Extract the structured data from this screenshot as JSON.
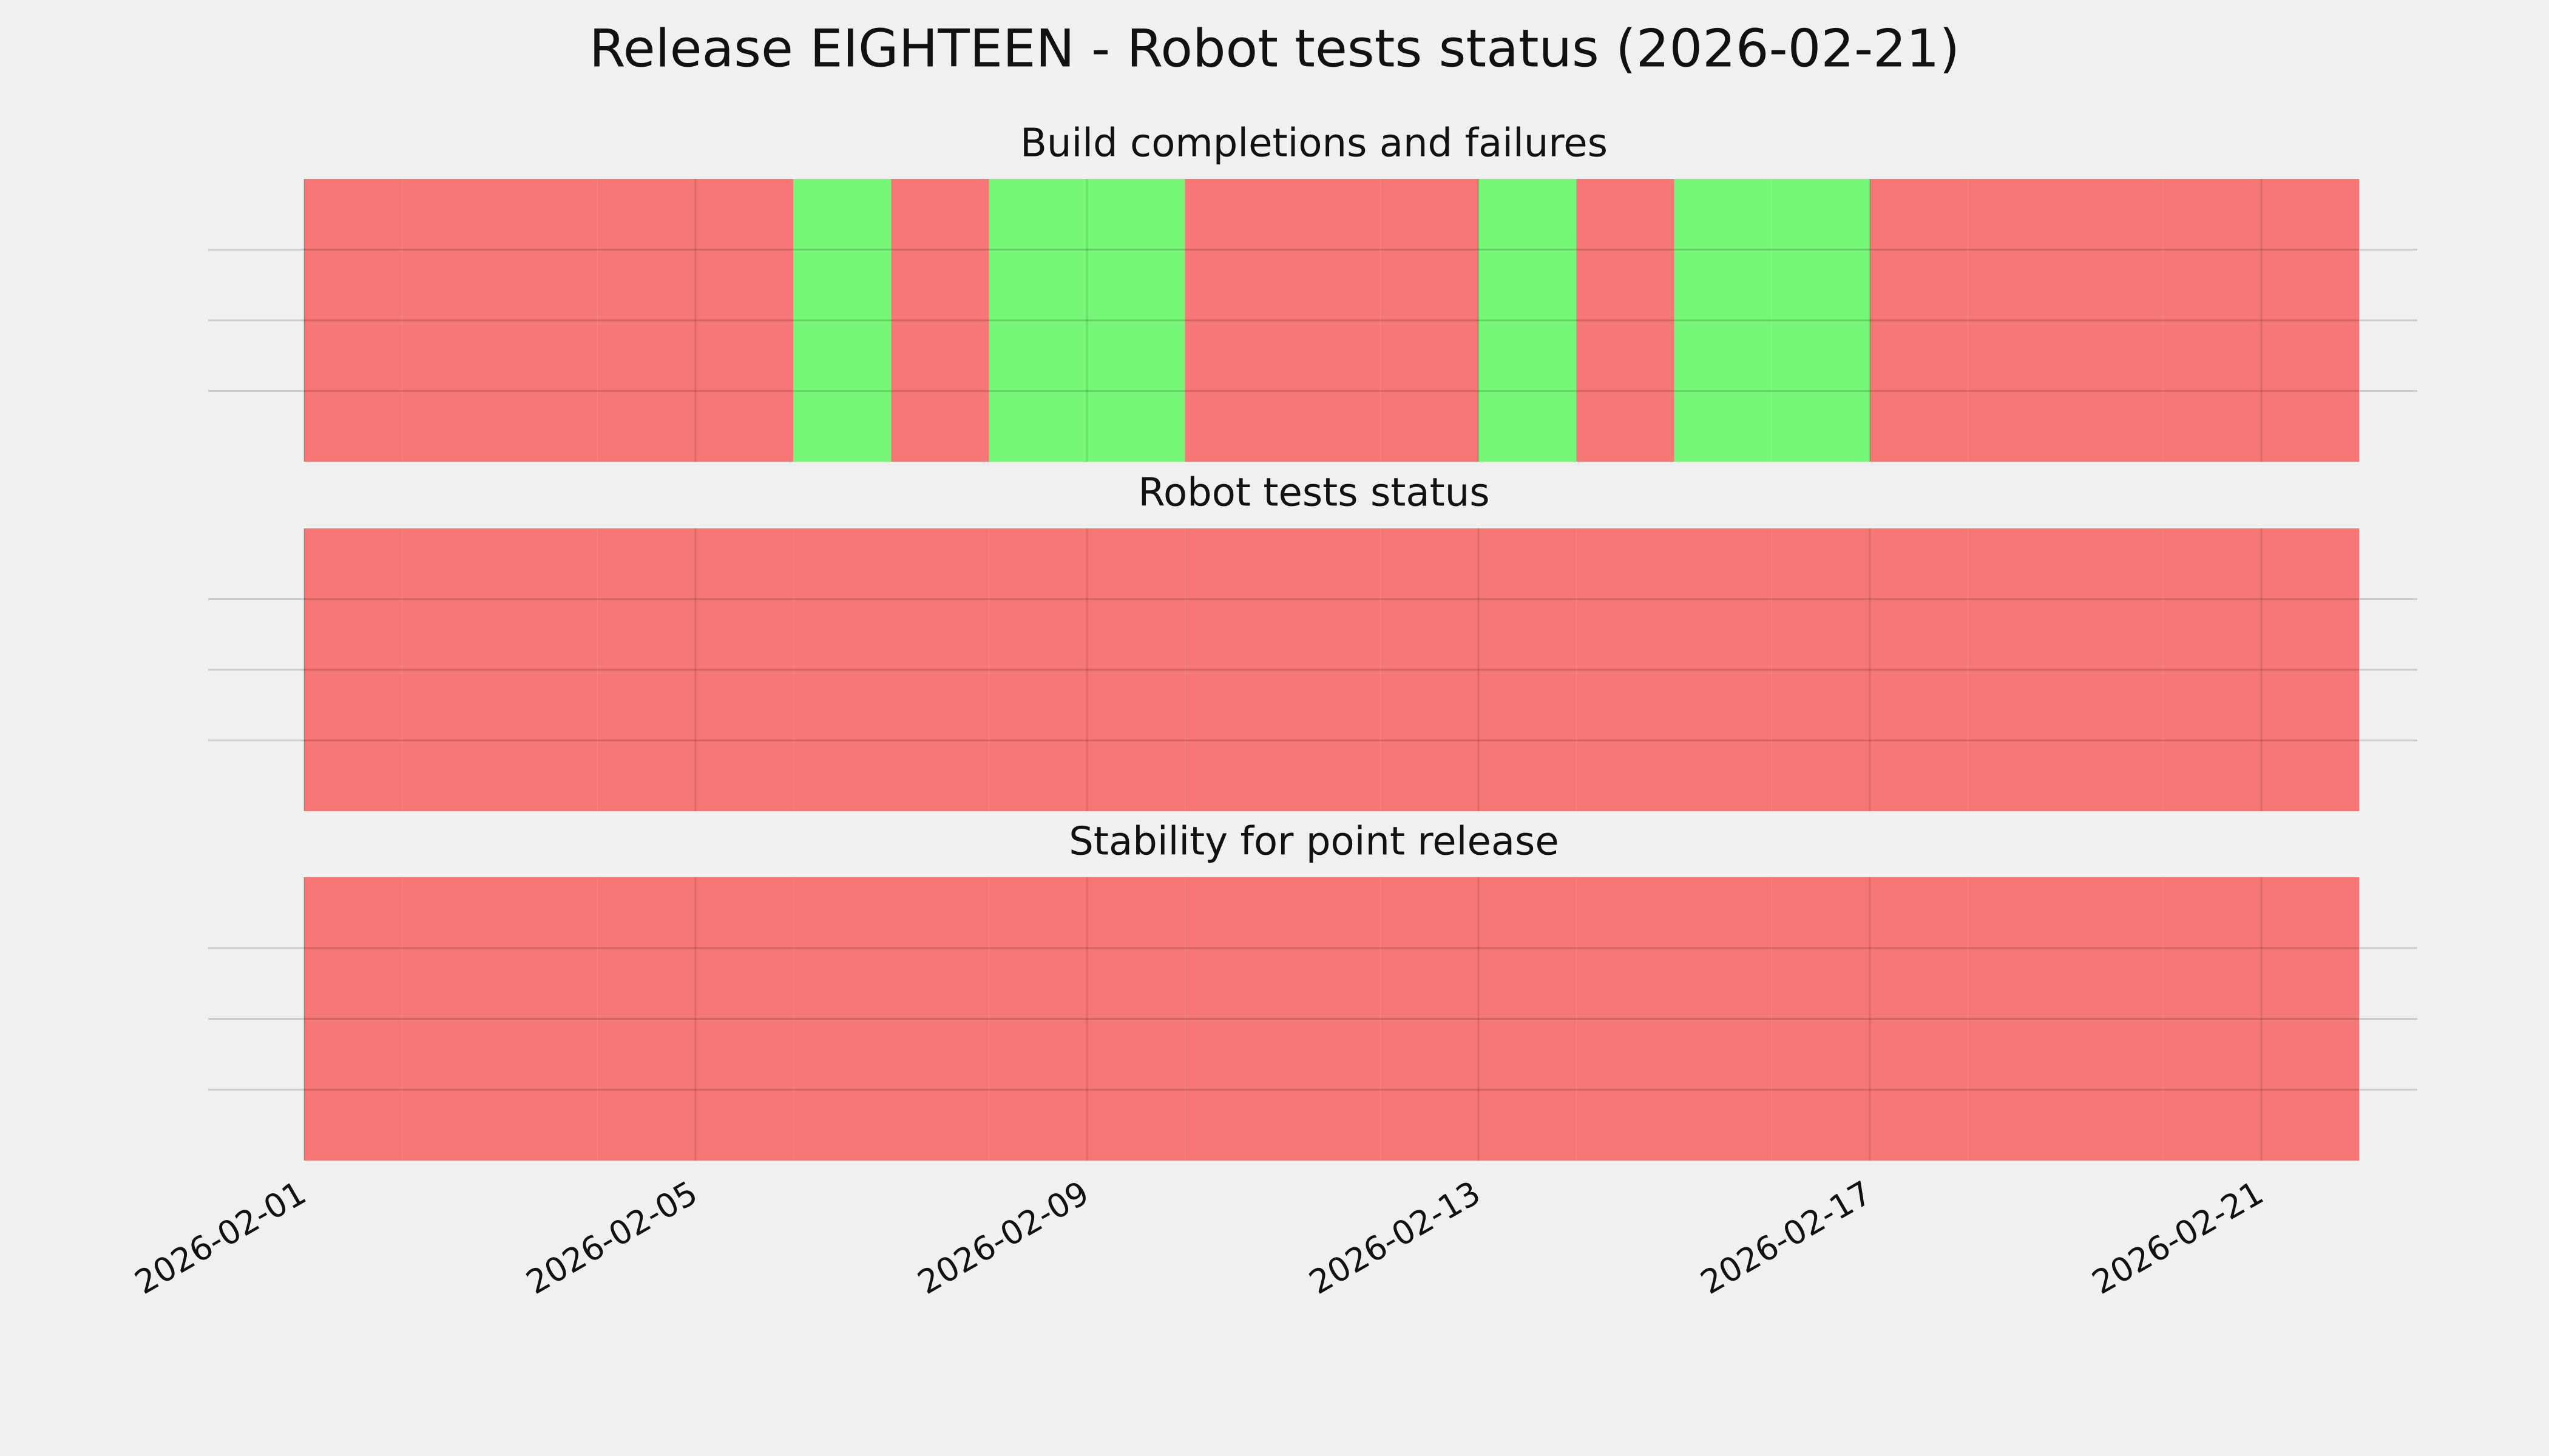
{
  "title": "Release EIGHTEEN - Robot tests status (2026-02-21)",
  "chart_data": [
    {
      "type": "timeline",
      "title": "Build completions and failures",
      "x": [
        "2026-02-01",
        "2026-02-02",
        "2026-02-03",
        "2026-02-04",
        "2026-02-05",
        "2026-02-06",
        "2026-02-07",
        "2026-02-08",
        "2026-02-09",
        "2026-02-10",
        "2026-02-11",
        "2026-02-12",
        "2026-02-13",
        "2026-02-14",
        "2026-02-15",
        "2026-02-16",
        "2026-02-17",
        "2026-02-18",
        "2026-02-19",
        "2026-02-20",
        "2026-02-21"
      ],
      "values": [
        0,
        0,
        0,
        0,
        0,
        1,
        0,
        1,
        1,
        0,
        0,
        0,
        1,
        0,
        1,
        1,
        0,
        0,
        0,
        0,
        0
      ],
      "colors": [
        "#f77777",
        "#77f777"
      ],
      "xlim": [
        "2026-02-01",
        "2026-02-22"
      ],
      "xticks": [
        "2026-02-01",
        "2026-02-05",
        "2026-02-09",
        "2026-02-13",
        "2026-02-17",
        "2026-02-21"
      ],
      "ylim": [
        0,
        1
      ],
      "yticks": [
        0.25,
        0.5,
        0.75
      ],
      "grid": true
    },
    {
      "type": "timeline",
      "title": "Robot tests status",
      "x": [
        "2026-02-01",
        "2026-02-02",
        "2026-02-03",
        "2026-02-04",
        "2026-02-05",
        "2026-02-06",
        "2026-02-07",
        "2026-02-08",
        "2026-02-09",
        "2026-02-10",
        "2026-02-11",
        "2026-02-12",
        "2026-02-13",
        "2026-02-14",
        "2026-02-15",
        "2026-02-16",
        "2026-02-17",
        "2026-02-18",
        "2026-02-19",
        "2026-02-20",
        "2026-02-21"
      ],
      "values": [
        0,
        0,
        0,
        0,
        0,
        0,
        0,
        0,
        0,
        0,
        0,
        0,
        0,
        0,
        0,
        0,
        0,
        0,
        0,
        0,
        0
      ],
      "colors": [
        "#f77777",
        "#77f777"
      ],
      "xlim": [
        "2026-02-01",
        "2026-02-22"
      ],
      "xticks": [
        "2026-02-01",
        "2026-02-05",
        "2026-02-09",
        "2026-02-13",
        "2026-02-17",
        "2026-02-21"
      ],
      "ylim": [
        0,
        1
      ],
      "yticks": [
        0.25,
        0.5,
        0.75
      ],
      "grid": true
    },
    {
      "type": "timeline",
      "title": "Stability for point release",
      "x": [
        "2026-02-01",
        "2026-02-02",
        "2026-02-03",
        "2026-02-04",
        "2026-02-05",
        "2026-02-06",
        "2026-02-07",
        "2026-02-08",
        "2026-02-09",
        "2026-02-10",
        "2026-02-11",
        "2026-02-12",
        "2026-02-13",
        "2026-02-14",
        "2026-02-15",
        "2026-02-16",
        "2026-02-17",
        "2026-02-18",
        "2026-02-19",
        "2026-02-20",
        "2026-02-21"
      ],
      "values": [
        0,
        0,
        0,
        0,
        0,
        0,
        0,
        0,
        0,
        0,
        0,
        0,
        0,
        0,
        0,
        0,
        0,
        0,
        0,
        0,
        0
      ],
      "colors": [
        "#f77777",
        "#77f777"
      ],
      "xlim": [
        "2026-02-01",
        "2026-02-22"
      ],
      "xticks": [
        "2026-02-01",
        "2026-02-05",
        "2026-02-09",
        "2026-02-13",
        "2026-02-17",
        "2026-02-21"
      ],
      "ylim": [
        0,
        1
      ],
      "yticks": [
        0.25,
        0.5,
        0.75
      ],
      "grid": true,
      "show_xtick_labels": true
    }
  ]
}
